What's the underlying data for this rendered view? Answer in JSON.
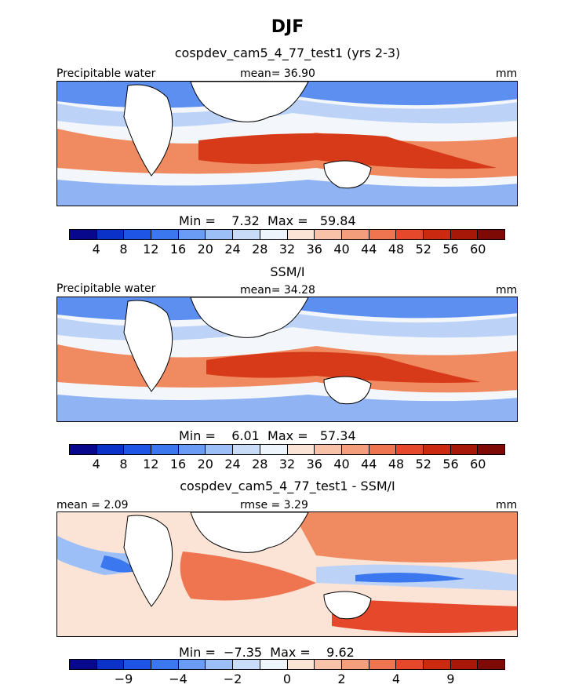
{
  "title": "DJF",
  "panels": [
    {
      "subtitle": "cospdev_cam5_4_77_test1 (yrs 2-3)",
      "left_label": "Precipitable water",
      "center_label": "mean=  36.90",
      "right_label": "mm",
      "minmax": "Min =    7.32  Max =   59.84"
    },
    {
      "subtitle": "SSM/I",
      "left_label": "Precipitable water",
      "center_label": "mean=  34.28",
      "right_label": "mm",
      "minmax": "Min =    6.01  Max =   57.34"
    },
    {
      "subtitle": "cospdev_cam5_4_77_test1 - SSM/I",
      "left_label": "mean =    2.09",
      "center_label": "rmse =    3.29",
      "right_label": "mm",
      "minmax": "Min =  −7.35  Max =    9.62"
    }
  ],
  "colorbar_colors": [
    "#08088c",
    "#0a31c8",
    "#1f55e6",
    "#3b78f0",
    "#6a9cf5",
    "#9dbff7",
    "#c8dcf8",
    "#eef4fb",
    "#fbe3d6",
    "#f8c2a8",
    "#f49e7c",
    "#ef7550",
    "#e5482a",
    "#cc2a10",
    "#a81808",
    "#7d0a04"
  ],
  "colorbar_ticks_abs": [
    "4",
    "8",
    "12",
    "16",
    "20",
    "24",
    "28",
    "32",
    "36",
    "40",
    "44",
    "48",
    "52",
    "56",
    "60"
  ],
  "colorbar_ticks_diff": [
    "−9",
    "−4",
    "−2",
    "0",
    "2",
    "4",
    "9"
  ]
}
